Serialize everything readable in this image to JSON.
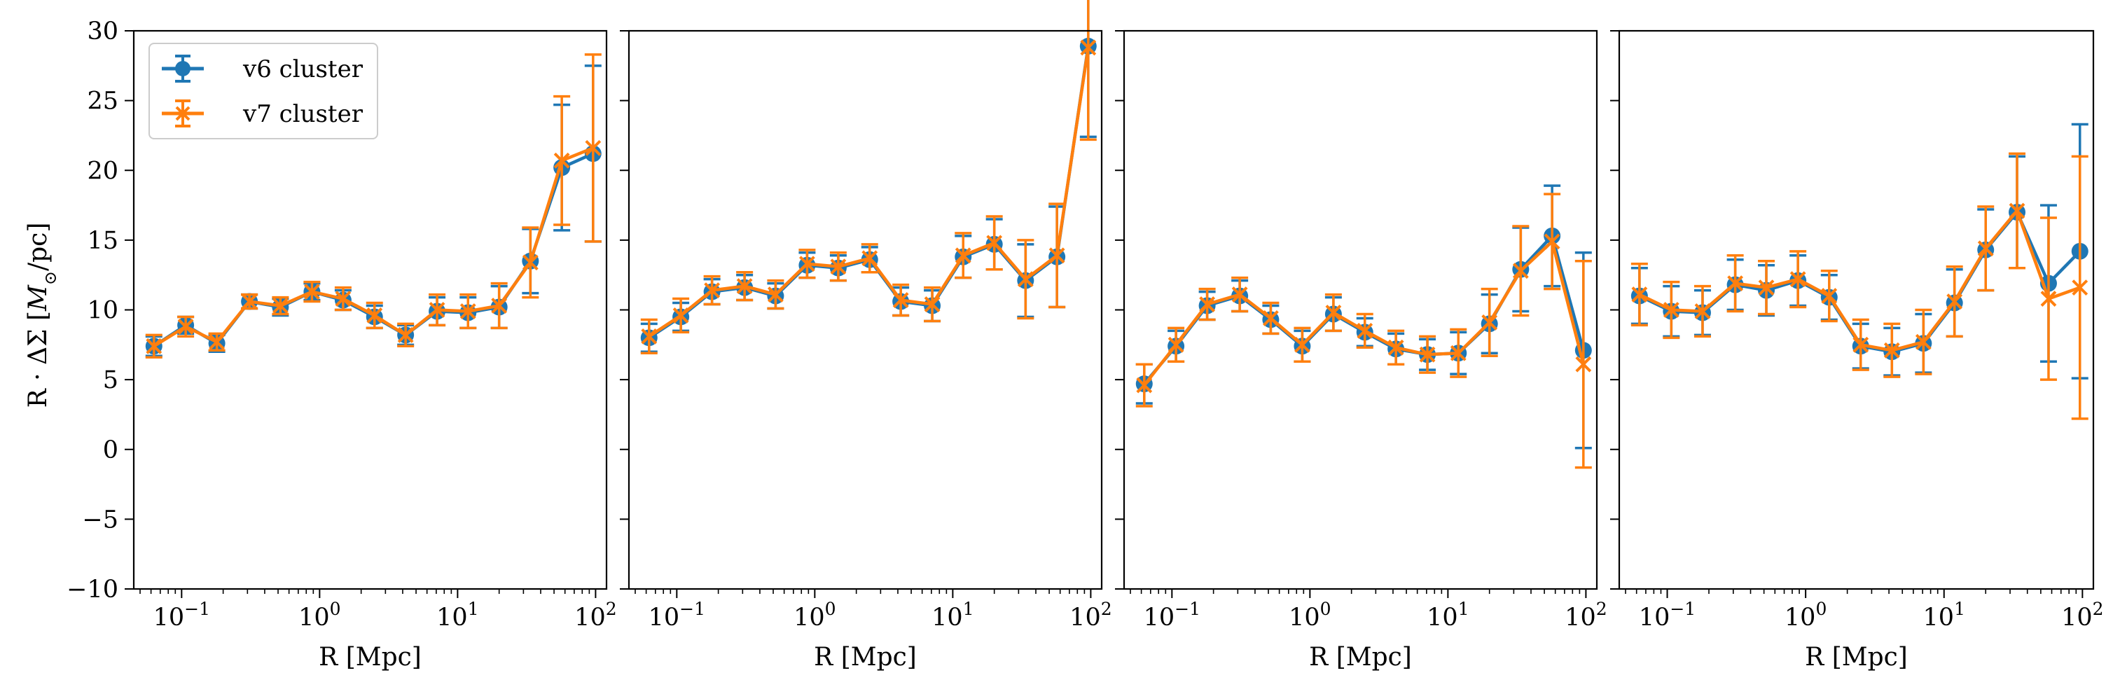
{
  "chart_data": {
    "type": "line",
    "layout": "1x4 panels, shared y axis",
    "ylim": [
      -10,
      30
    ],
    "y_ticks": [
      -10,
      -5,
      0,
      5,
      10,
      15,
      20,
      25,
      30
    ],
    "y_tick_labels": [
      "−10",
      "−5",
      "0",
      "5",
      "10",
      "15",
      "20",
      "25",
      "30"
    ],
    "xscale": "log",
    "xlim": [
      0.045,
      120
    ],
    "x_ticks": [
      0.1,
      1,
      10,
      100
    ],
    "x_tick_labels": [
      {
        "base": "10",
        "exp": "−1"
      },
      {
        "base": "10",
        "exp": "0"
      },
      {
        "base": "10",
        "exp": "1"
      },
      {
        "base": "10",
        "exp": "2"
      }
    ],
    "xlabel": "R [Mpc]",
    "ylabel": {
      "prefix": "R · ΔΣ [",
      "unit": "M",
      "sub": "⊙",
      "suffix": "/pc]"
    },
    "legend": {
      "placement": "upper-left of first panel",
      "entries": [
        "v6 cluster",
        "v7 cluster"
      ]
    },
    "colors": {
      "v6": "#1f77b4",
      "v7": "#ff7f0e"
    },
    "x": [
      0.063,
      0.107,
      0.18,
      0.31,
      0.52,
      0.88,
      1.48,
      2.5,
      4.2,
      7.1,
      11.9,
      20,
      33.7,
      56.9,
      95.9
    ],
    "panels": [
      {
        "series": [
          {
            "name": "v6 cluster",
            "marker": "circle",
            "y": [
              7.4,
              8.9,
              7.6,
              10.6,
              10.2,
              11.3,
              10.7,
              9.5,
              8.2,
              9.9,
              9.8,
              10.2,
              13.5,
              20.2,
              21.2
            ],
            "err": [
              0.7,
              0.6,
              0.6,
              0.5,
              0.6,
              0.6,
              0.7,
              0.8,
              0.7,
              1.0,
              1.1,
              1.5,
              2.3,
              4.5,
              6.3
            ]
          },
          {
            "name": "v7 cluster",
            "marker": "x",
            "y": [
              7.4,
              8.8,
              7.7,
              10.6,
              10.3,
              11.3,
              10.8,
              9.6,
              8.2,
              10.0,
              9.9,
              10.3,
              13.4,
              20.7,
              21.6
            ],
            "err": [
              0.8,
              0.7,
              0.6,
              0.5,
              0.6,
              0.7,
              0.8,
              0.9,
              0.8,
              1.1,
              1.2,
              1.6,
              2.5,
              4.6,
              6.7
            ]
          }
        ]
      },
      {
        "series": [
          {
            "name": "v6 cluster",
            "marker": "circle",
            "y": [
              8.0,
              9.5,
              11.3,
              11.6,
              11.0,
              13.2,
              13.0,
              13.6,
              10.6,
              10.3,
              13.8,
              14.7,
              12.1,
              13.8,
              28.9
            ],
            "err": [
              1.0,
              1.0,
              0.9,
              0.9,
              0.9,
              0.9,
              0.9,
              0.9,
              1.0,
              1.1,
              1.5,
              1.8,
              2.6,
              3.6,
              6.5
            ]
          },
          {
            "name": "v7 cluster",
            "marker": "x",
            "y": [
              8.1,
              9.6,
              11.4,
              11.7,
              11.1,
              13.3,
              13.1,
              13.7,
              10.7,
              10.4,
              13.9,
              14.8,
              12.2,
              13.9,
              28.8
            ],
            "err": [
              1.2,
              1.2,
              1.0,
              1.0,
              1.0,
              1.0,
              1.0,
              1.0,
              1.1,
              1.2,
              1.6,
              1.9,
              2.8,
              3.7,
              6.6
            ]
          }
        ]
      },
      {
        "series": [
          {
            "name": "v6 cluster",
            "marker": "circle",
            "y": [
              4.7,
              7.4,
              10.3,
              11.0,
              9.3,
              7.4,
              9.7,
              8.4,
              7.2,
              6.8,
              6.9,
              9.0,
              12.9,
              15.3,
              7.1
            ],
            "err": [
              1.4,
              1.1,
              1.0,
              1.1,
              1.0,
              1.1,
              1.2,
              1.0,
              1.1,
              1.1,
              1.5,
              2.1,
              3.0,
              3.6,
              7.0
            ]
          },
          {
            "name": "v7 cluster",
            "marker": "x",
            "y": [
              4.6,
              7.5,
              10.4,
              11.1,
              9.4,
              7.5,
              9.8,
              8.5,
              7.3,
              6.8,
              6.9,
              9.1,
              12.8,
              14.9,
              6.1
            ],
            "err": [
              1.5,
              1.2,
              1.1,
              1.2,
              1.1,
              1.2,
              1.3,
              1.2,
              1.2,
              1.3,
              1.7,
              2.4,
              3.2,
              3.4,
              7.4
            ]
          }
        ]
      },
      {
        "series": [
          {
            "name": "v6 cluster",
            "marker": "circle",
            "y": [
              11.0,
              9.9,
              9.8,
              11.8,
              11.4,
              12.1,
              10.9,
              7.4,
              7.0,
              7.6,
              10.5,
              14.3,
              17.0,
              11.9,
              14.2
            ],
            "err": [
              2.0,
              1.8,
              1.6,
              1.8,
              1.8,
              1.8,
              1.6,
              1.6,
              1.7,
              2.1,
              2.4,
              2.9,
              4.0,
              5.6,
              9.1
            ]
          },
          {
            "name": "v7 cluster",
            "marker": "x",
            "y": [
              11.1,
              10.0,
              9.9,
              11.9,
              11.6,
              12.2,
              11.0,
              7.5,
              7.1,
              7.7,
              10.6,
              14.4,
              17.1,
              10.8,
              11.6
            ],
            "err": [
              2.2,
              2.0,
              1.8,
              2.0,
              1.9,
              2.0,
              1.8,
              1.8,
              1.9,
              2.3,
              2.5,
              3.0,
              4.1,
              5.8,
              9.4
            ]
          }
        ]
      }
    ]
  }
}
